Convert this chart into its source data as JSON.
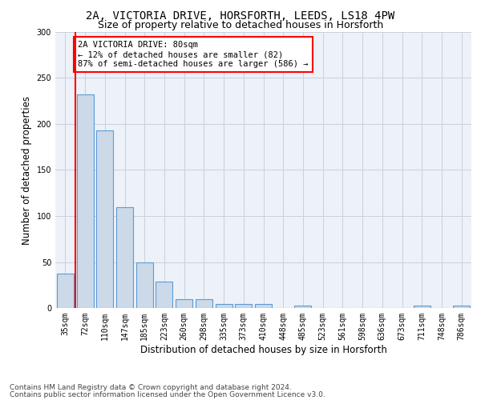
{
  "title_line1": "2A, VICTORIA DRIVE, HORSFORTH, LEEDS, LS18 4PW",
  "title_line2": "Size of property relative to detached houses in Horsforth",
  "xlabel": "Distribution of detached houses by size in Horsforth",
  "ylabel": "Number of detached properties",
  "categories": [
    "35sqm",
    "72sqm",
    "110sqm",
    "147sqm",
    "185sqm",
    "223sqm",
    "260sqm",
    "298sqm",
    "335sqm",
    "373sqm",
    "410sqm",
    "448sqm",
    "485sqm",
    "523sqm",
    "561sqm",
    "598sqm",
    "636sqm",
    "673sqm",
    "711sqm",
    "748sqm",
    "786sqm"
  ],
  "values": [
    37,
    232,
    193,
    110,
    50,
    29,
    10,
    10,
    4,
    4,
    4,
    0,
    3,
    0,
    0,
    0,
    0,
    0,
    3,
    0,
    3
  ],
  "bar_color": "#ccd9e8",
  "bar_edge_color": "#5b9bd5",
  "red_line_x": 0.5,
  "annotation_text": "2A VICTORIA DRIVE: 80sqm\n← 12% of detached houses are smaller (82)\n87% of semi-detached houses are larger (586) →",
  "annotation_box_color": "white",
  "annotation_box_edge_color": "red",
  "ylim": [
    0,
    300
  ],
  "yticks": [
    0,
    50,
    100,
    150,
    200,
    250,
    300
  ],
  "footer_line1": "Contains HM Land Registry data © Crown copyright and database right 2024.",
  "footer_line2": "Contains public sector information licensed under the Open Government Licence v3.0.",
  "bg_color": "#edf1f8",
  "grid_color": "#c8d0de",
  "title_fontsize": 10,
  "subtitle_fontsize": 9,
  "axis_label_fontsize": 8.5,
  "tick_fontsize": 7,
  "annotation_fontsize": 7.5,
  "footer_fontsize": 6.5
}
